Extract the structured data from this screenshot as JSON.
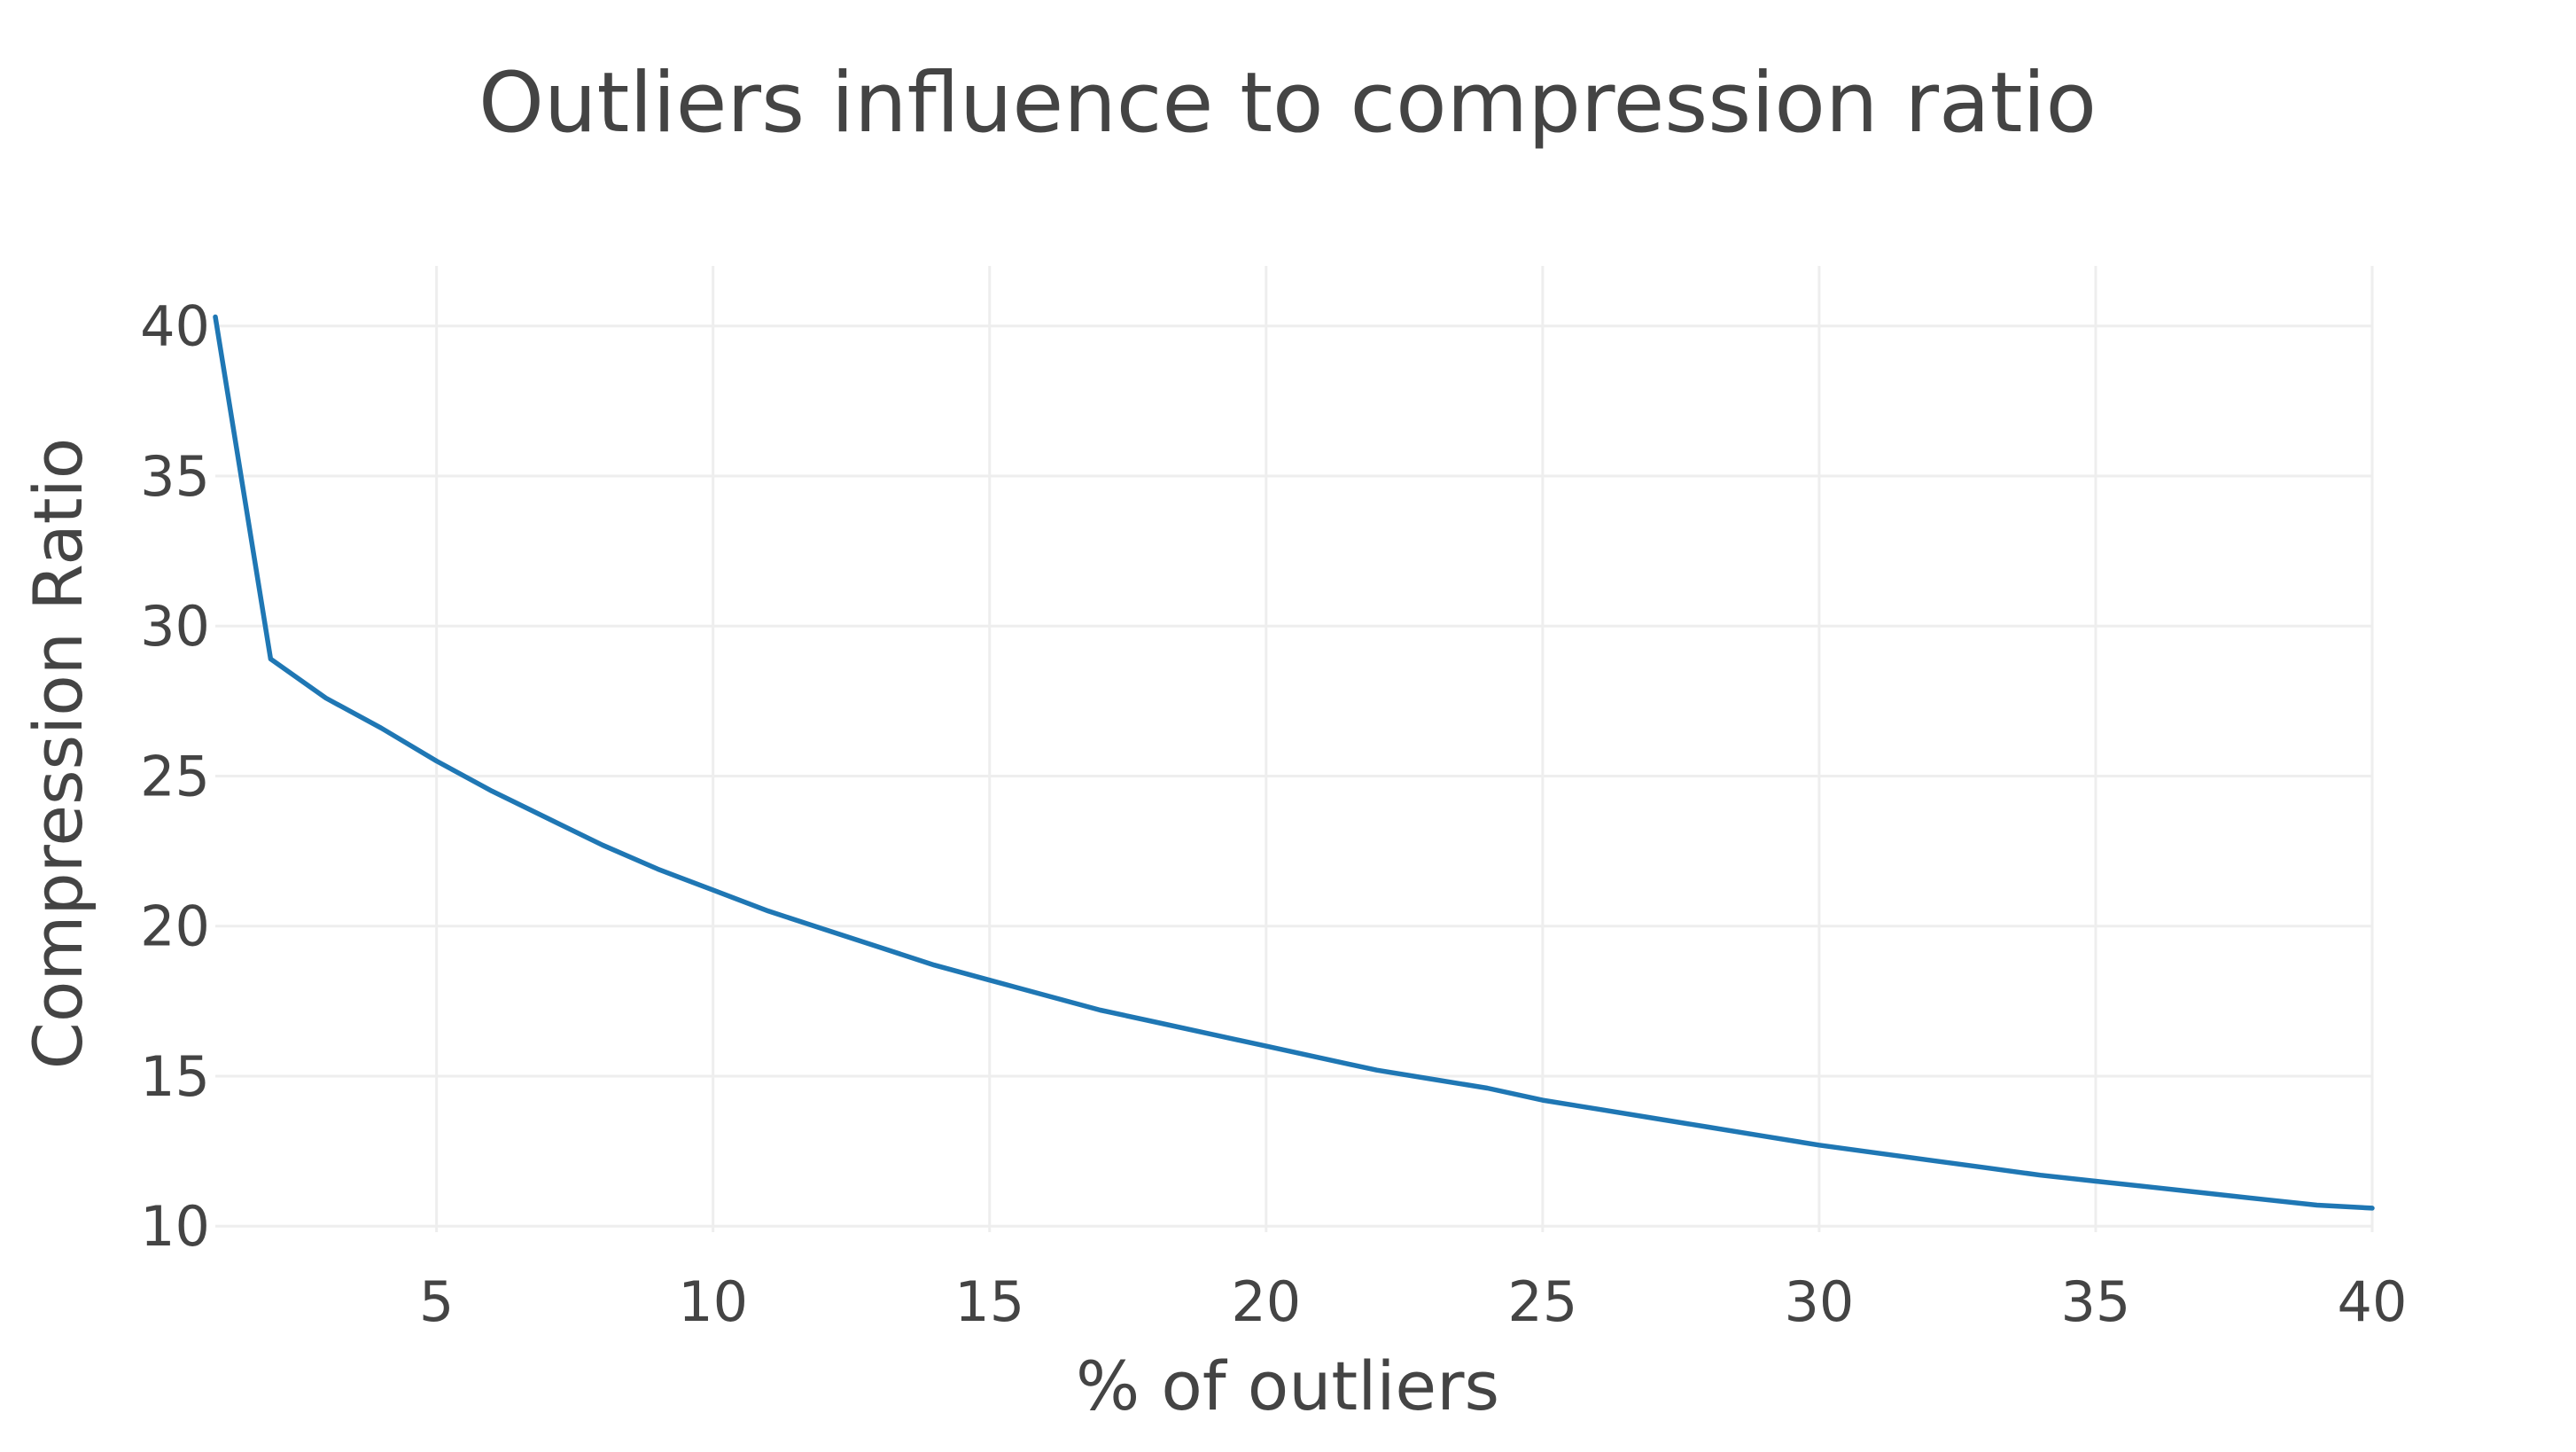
{
  "chart_data": {
    "type": "line",
    "title": "Outliers influence to compression ratio",
    "xlabel": "% of outliers",
    "ylabel": "Compression Ratio",
    "xlim": [
      1,
      40
    ],
    "ylim": [
      9.8,
      42
    ],
    "xticks": [
      5,
      10,
      15,
      20,
      25,
      30,
      35,
      40
    ],
    "yticks": [
      10,
      15,
      20,
      25,
      30,
      35,
      40
    ],
    "grid": true,
    "legend": "none",
    "series": [
      {
        "color": "#1f77b4",
        "x": [
          1,
          2,
          3,
          4,
          5,
          6,
          7,
          8,
          9,
          10,
          11,
          12,
          13,
          14,
          15,
          16,
          17,
          18,
          19,
          20,
          21,
          22,
          23,
          24,
          25,
          26,
          27,
          28,
          29,
          30,
          31,
          32,
          33,
          34,
          35,
          36,
          37,
          38,
          39,
          40
        ],
        "y": [
          40.3,
          28.9,
          27.6,
          26.6,
          25.5,
          24.5,
          23.6,
          22.7,
          21.9,
          21.2,
          20.5,
          19.9,
          19.3,
          18.7,
          18.2,
          17.7,
          17.2,
          16.8,
          16.4,
          16.0,
          15.6,
          15.2,
          14.9,
          14.6,
          14.2,
          13.9,
          13.6,
          13.3,
          13.0,
          12.7,
          12.45,
          12.2,
          11.95,
          11.7,
          11.5,
          11.3,
          11.1,
          10.9,
          10.7,
          10.6
        ]
      }
    ]
  }
}
